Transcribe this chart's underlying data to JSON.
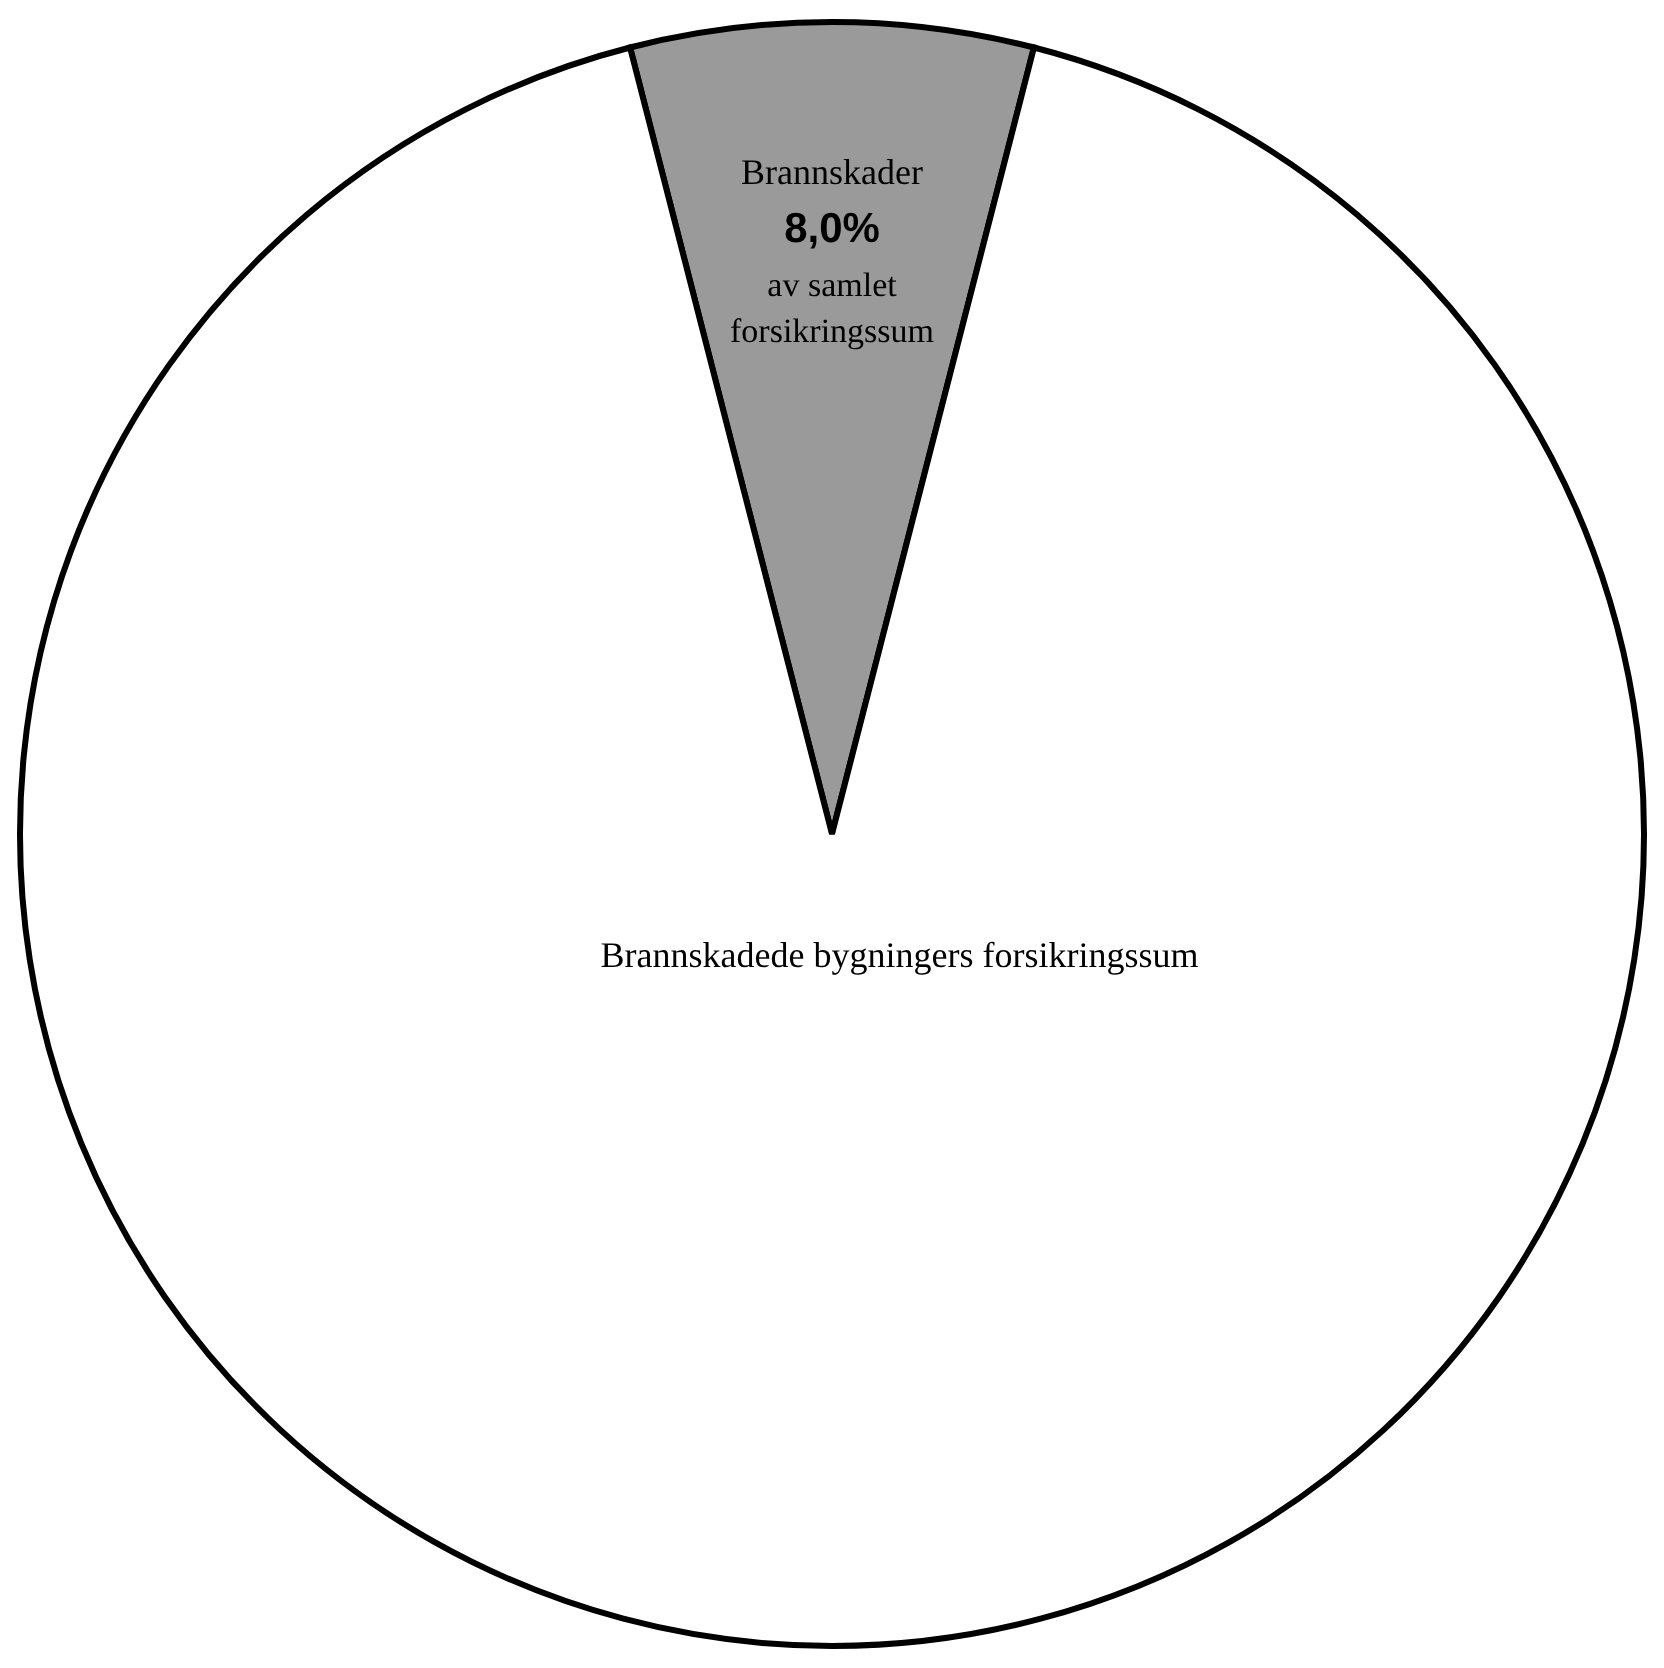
{
  "chart_data": {
    "type": "pie",
    "categories": [
      "Brannskader",
      "Brannskadede bygningers forsikringssum"
    ],
    "values": [
      8.0,
      92.0
    ],
    "colors": [
      "#9a9a9a",
      "#ffffff"
    ],
    "value_labels": [
      "8,0%",
      null
    ],
    "annotations": [
      "av samlet forsikringssum"
    ]
  }
}
